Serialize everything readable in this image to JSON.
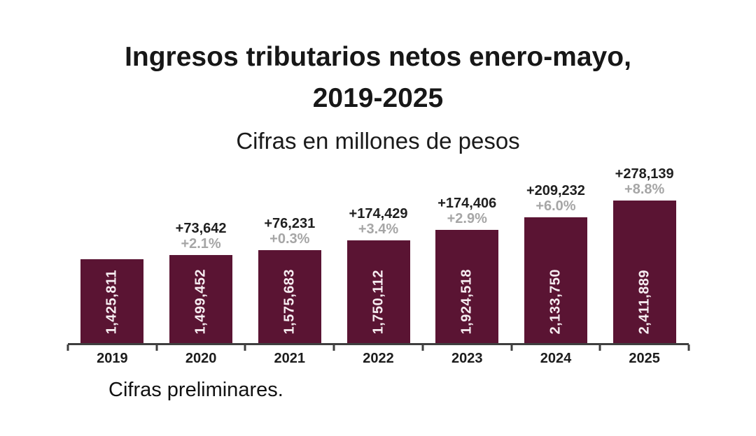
{
  "title": {
    "line1": "Ingresos tributarios netos enero-mayo,",
    "line2": "2019-2025",
    "subtitle": "Cifras en millones de pesos"
  },
  "footnote": "Cifras preliminares.",
  "colors": {
    "bar": "#5a1433",
    "bar_label": "#f6edf1",
    "annotation_value": "#1f1f1f",
    "annotation_pct": "#a6a6a6",
    "axis": "#3f3f3f"
  },
  "chart_data": {
    "type": "bar",
    "title": "Ingresos tributarios netos enero-mayo, 2019-2025",
    "subtitle": "Cifras en millones de pesos",
    "unit": "millones de pesos",
    "categories": [
      "2019",
      "2020",
      "2021",
      "2022",
      "2023",
      "2024",
      "2025"
    ],
    "values": [
      1425811,
      1499452,
      1575683,
      1750112,
      1924518,
      2133750,
      2411889
    ],
    "value_labels": [
      "1,425,811",
      "1,499,452",
      "1,575,683",
      "1,750,112",
      "1,924,518",
      "2,133,750",
      "2,411,889"
    ],
    "annotations": [
      {
        "delta": null,
        "pct": null
      },
      {
        "delta": "+73,642",
        "pct": "+2.1%"
      },
      {
        "delta": "+76,231",
        "pct": "+0.3%"
      },
      {
        "delta": "+174,429",
        "pct": "+3.4%"
      },
      {
        "delta": "+174,406",
        "pct": "+2.9%"
      },
      {
        "delta": "+209,232",
        "pct": "+6.0%"
      },
      {
        "delta": "+278,139",
        "pct": "+8.8%"
      }
    ],
    "ylim": [
      0,
      2411889
    ],
    "xlabel": "",
    "ylabel": "",
    "grid": false,
    "legend": null
  }
}
